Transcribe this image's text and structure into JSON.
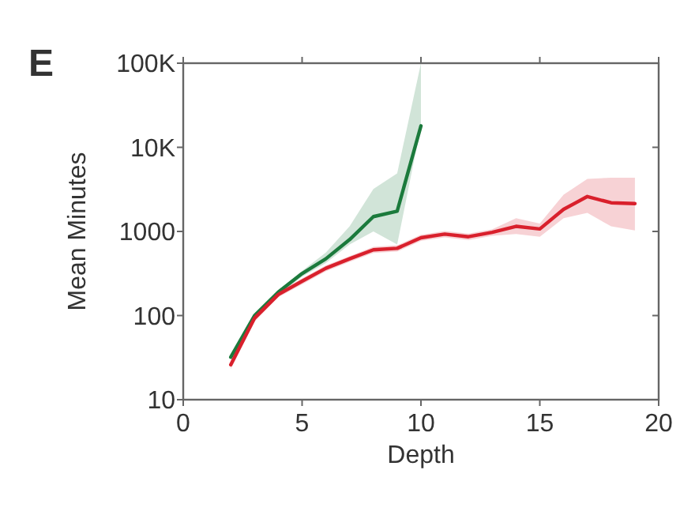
{
  "chart_data": {
    "type": "line",
    "annotations": [
      "E"
    ],
    "xlabel": "Depth",
    "ylabel": "Mean Minutes",
    "log": "y",
    "xlim": [
      0,
      20
    ],
    "xticks": [
      0,
      5,
      10,
      15,
      20
    ],
    "ylim": [
      10,
      100000
    ],
    "yticks": [
      {
        "value": 10,
        "label": "10"
      },
      {
        "value": 100,
        "label": "100"
      },
      {
        "value": 1000,
        "label": "1000"
      },
      {
        "value": 10000,
        "label": "10K"
      },
      {
        "value": 100000,
        "label": "100K"
      }
    ],
    "grid": false,
    "marker": "none",
    "line_style": "solid",
    "series": [
      {
        "color": "#1b7a3c",
        "x": [
          2,
          3,
          4,
          5,
          6,
          7,
          8,
          9,
          10
        ],
        "values": [
          32,
          100,
          190,
          316,
          473,
          800,
          1500,
          1740,
          18000
        ],
        "lower": [
          30,
          94,
          178,
          290,
          420,
          700,
          1000,
          700,
          17800
        ],
        "upper": [
          34,
          106,
          200,
          340,
          560,
          1150,
          3200,
          4900,
          100000
        ]
      },
      {
        "color": "#d9202c",
        "x": [
          2,
          3,
          4,
          5,
          6,
          7,
          8,
          9,
          10,
          11,
          12,
          13,
          14,
          15,
          16,
          17,
          18,
          19
        ],
        "values": [
          26,
          93,
          178,
          256,
          365,
          473,
          605,
          630,
          841,
          930,
          865,
          975,
          1150,
          1070,
          1830,
          2600,
          2190,
          2140
        ],
        "lower": [
          23,
          85,
          165,
          235,
          335,
          435,
          555,
          575,
          770,
          850,
          790,
          890,
          930,
          865,
          1440,
          1660,
          1150,
          1030
        ],
        "upper": [
          29,
          101,
          191,
          277,
          395,
          510,
          655,
          685,
          910,
          1010,
          940,
          1060,
          1440,
          1240,
          2740,
          4220,
          4350,
          4350
        ]
      }
    ]
  }
}
